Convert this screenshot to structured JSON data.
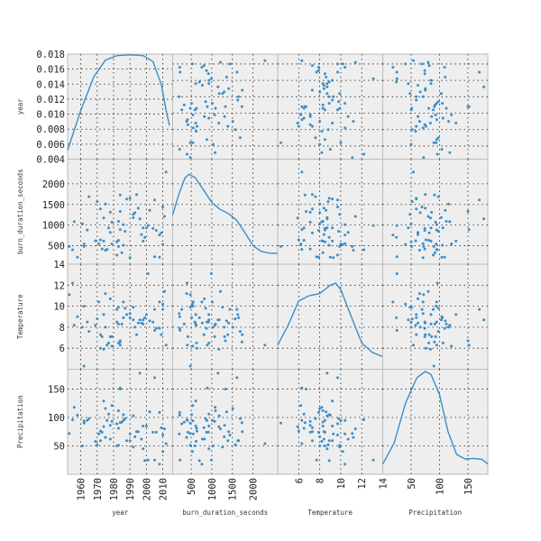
{
  "chart_data": {
    "type": "scatter",
    "subtype": "scatter_matrix",
    "diagonal": "kde",
    "grid": true,
    "variables": [
      {
        "name": "year",
        "label": "year",
        "range": [
          1952,
          2016
        ],
        "ticks": [
          1960,
          1970,
          1980,
          1990,
          2000,
          2010
        ],
        "tick_labels": [
          "1960",
          "1970",
          "1980",
          "1990",
          "2000",
          "2010"
        ]
      },
      {
        "name": "burn_duration_seconds",
        "label": "burn_duration_seconds",
        "range": [
          50,
          2600
        ],
        "ticks": [
          500,
          1000,
          1500,
          2000
        ],
        "tick_labels": [
          "500",
          "1000",
          "1500",
          "2000"
        ]
      },
      {
        "name": "Temperature",
        "label": "Temperature",
        "range": [
          4,
          14
        ],
        "ticks": [
          6,
          8,
          10,
          12,
          14
        ],
        "tick_labels": [
          "6",
          "8",
          "10",
          "12",
          "14"
        ]
      },
      {
        "name": "Precipitation",
        "label": "Precipitation",
        "range": [
          0,
          185
        ],
        "ticks": [
          50,
          100,
          150
        ],
        "tick_labels": [
          "50",
          "100",
          "150"
        ]
      }
    ],
    "y_axis_ticks": {
      "year": {
        "range": [
          0.004,
          0.018
        ],
        "ticks": [
          0.004,
          0.006,
          0.008,
          0.01,
          0.012,
          0.014,
          0.016,
          0.018
        ],
        "tick_labels": [
          "0.004",
          "0.006",
          "0.008",
          "0.010",
          "0.012",
          "0.014",
          "0.016",
          "0.018"
        ]
      },
      "burn_duration_seconds": {
        "range": [
          50,
          2600
        ],
        "ticks": [
          500,
          1000,
          1500,
          2000
        ],
        "tick_labels": [
          "500",
          "1000",
          "1500",
          "2000"
        ]
      },
      "Temperature": {
        "range": [
          4,
          14
        ],
        "ticks": [
          6,
          8,
          10,
          12,
          14
        ],
        "tick_labels": [
          "6",
          "8",
          "10",
          "12",
          "14"
        ]
      },
      "Precipitation": {
        "range": [
          0,
          185
        ],
        "ticks": [
          50,
          100,
          150
        ],
        "tick_labels": [
          "50",
          "100",
          "150"
        ]
      }
    },
    "kde_curves": {
      "year": [
        [
          1952,
          0.0052
        ],
        [
          1960,
          0.0105
        ],
        [
          1968,
          0.015
        ],
        [
          1975,
          0.0172
        ],
        [
          1982,
          0.0178
        ],
        [
          1990,
          0.0179
        ],
        [
          1998,
          0.0178
        ],
        [
          2004,
          0.017
        ],
        [
          2009,
          0.014
        ],
        [
          2012,
          0.0105
        ],
        [
          2014,
          0.0085
        ]
      ],
      "burn_duration_seconds": [
        [
          50,
          1250
        ],
        [
          200,
          1750
        ],
        [
          350,
          2150
        ],
        [
          450,
          2230
        ],
        [
          600,
          2150
        ],
        [
          800,
          1850
        ],
        [
          1000,
          1550
        ],
        [
          1200,
          1380
        ],
        [
          1400,
          1280
        ],
        [
          1600,
          1120
        ],
        [
          1800,
          820
        ],
        [
          2000,
          500
        ],
        [
          2200,
          360
        ],
        [
          2400,
          320
        ],
        [
          2600,
          310
        ]
      ],
      "Temperature": [
        [
          4,
          6.3
        ],
        [
          5,
          8.2
        ],
        [
          6,
          10.5
        ],
        [
          7,
          11.0
        ],
        [
          8,
          11.2
        ],
        [
          9,
          12.0
        ],
        [
          9.5,
          12.2
        ],
        [
          10,
          11.6
        ],
        [
          11,
          9.0
        ],
        [
          12,
          6.5
        ],
        [
          13,
          5.6
        ],
        [
          14,
          5.2
        ]
      ],
      "Precipitation": [
        [
          0,
          18
        ],
        [
          20,
          55
        ],
        [
          40,
          125
        ],
        [
          60,
          170
        ],
        [
          75,
          181
        ],
        [
          85,
          176
        ],
        [
          100,
          140
        ],
        [
          115,
          75
        ],
        [
          130,
          35
        ],
        [
          145,
          27
        ],
        [
          160,
          28
        ],
        [
          175,
          26
        ],
        [
          185,
          18
        ]
      ]
    },
    "observations": {
      "year": [
        1975,
        1983,
        1955,
        1962,
        1974,
        2001,
        1998,
        1956,
        1982,
        1990,
        1974,
        2011,
        1970,
        2009,
        2012,
        1984,
        1976,
        2005,
        1996,
        1987,
        1979,
        1958,
        1965,
        1982,
        1992,
        2005,
        2000,
        1984,
        1969,
        1953,
        2002,
        1978,
        2006,
        1995,
        1984,
        2008,
        1972,
        1978,
        1983,
        1997,
        1975,
        1998,
        1973,
        1999,
        1986,
        1993,
        2010,
        1986,
        1985,
        1977,
        1961,
        2008,
        1988,
        1971,
        1990,
        1994,
        2004,
        1983,
        1964,
        2010,
        1962,
        1972,
        1992,
        1979
      ],
      "burn_duration_seconds": [
        1510,
        1090,
        400,
        480,
        1170,
        990,
        930,
        1080,
        270,
        210,
        610,
        1210,
        1570,
        810,
        2290,
        1730,
        410,
        1610,
        1150,
        850,
        540,
        220,
        1690,
        590,
        1260,
        230,
        930,
        1330,
        620,
        480,
        1360,
        820,
        870,
        1410,
        890,
        760,
        1390,
        1310,
        480,
        770,
        390,
        610,
        420,
        700,
        510,
        1300,
        530,
        1010,
        330,
        930,
        1030,
        220,
        1630,
        550,
        1650,
        1740,
        920,
        630,
        880,
        1440,
        540,
        640,
        1180,
        1070
      ],
      "Temperature": [
        8.0,
        8.3,
        12.2,
        4.3,
        5.9,
        13.1,
        8.7,
        8.2,
        9.7,
        9.3,
        9.2,
        11.4,
        8.8,
        7.3,
        6.3,
        6.6,
        6.3,
        9.7,
        8.7,
        9.8,
        6.2,
        9.0,
        7.6,
        8.5,
        9.9,
        7.7,
        9.2,
        6.7,
        8.2,
        11.1,
        8.6,
        10.7,
        7.9,
        8.4,
        6.3,
        10.4,
        7.3,
        7.1,
        9.9,
        8.4,
        11.2,
        8.3,
        7.1,
        8.9,
        8.9,
        8.0,
        10.2,
        10.4,
        8.3,
        6.5,
        8.0,
        7.9,
        9.2,
        10.4,
        8.9,
        7.3,
        8.5,
        6.5,
        8.5,
        9.7,
        10.0,
        6.0,
        8.7,
        7.1
      ],
      "Precipitation": [
        116,
        112,
        96,
        90,
        84,
        25,
        45,
        118,
        89,
        71,
        129,
        80,
        52,
        82,
        54,
        91,
        95,
        170,
        178,
        98,
        121,
        104,
        98,
        50,
        48,
        25,
        85,
        150,
        58,
        72,
        110,
        62,
        74,
        75,
        152,
        18,
        59,
        86,
        51,
        62,
        65,
        85,
        74,
        24,
        105,
        66,
        40,
        95,
        92,
        106,
        50,
        109,
        59,
        71,
        59,
        75,
        74,
        81,
        95,
        69,
        94,
        76,
        103,
        93
      ]
    }
  }
}
